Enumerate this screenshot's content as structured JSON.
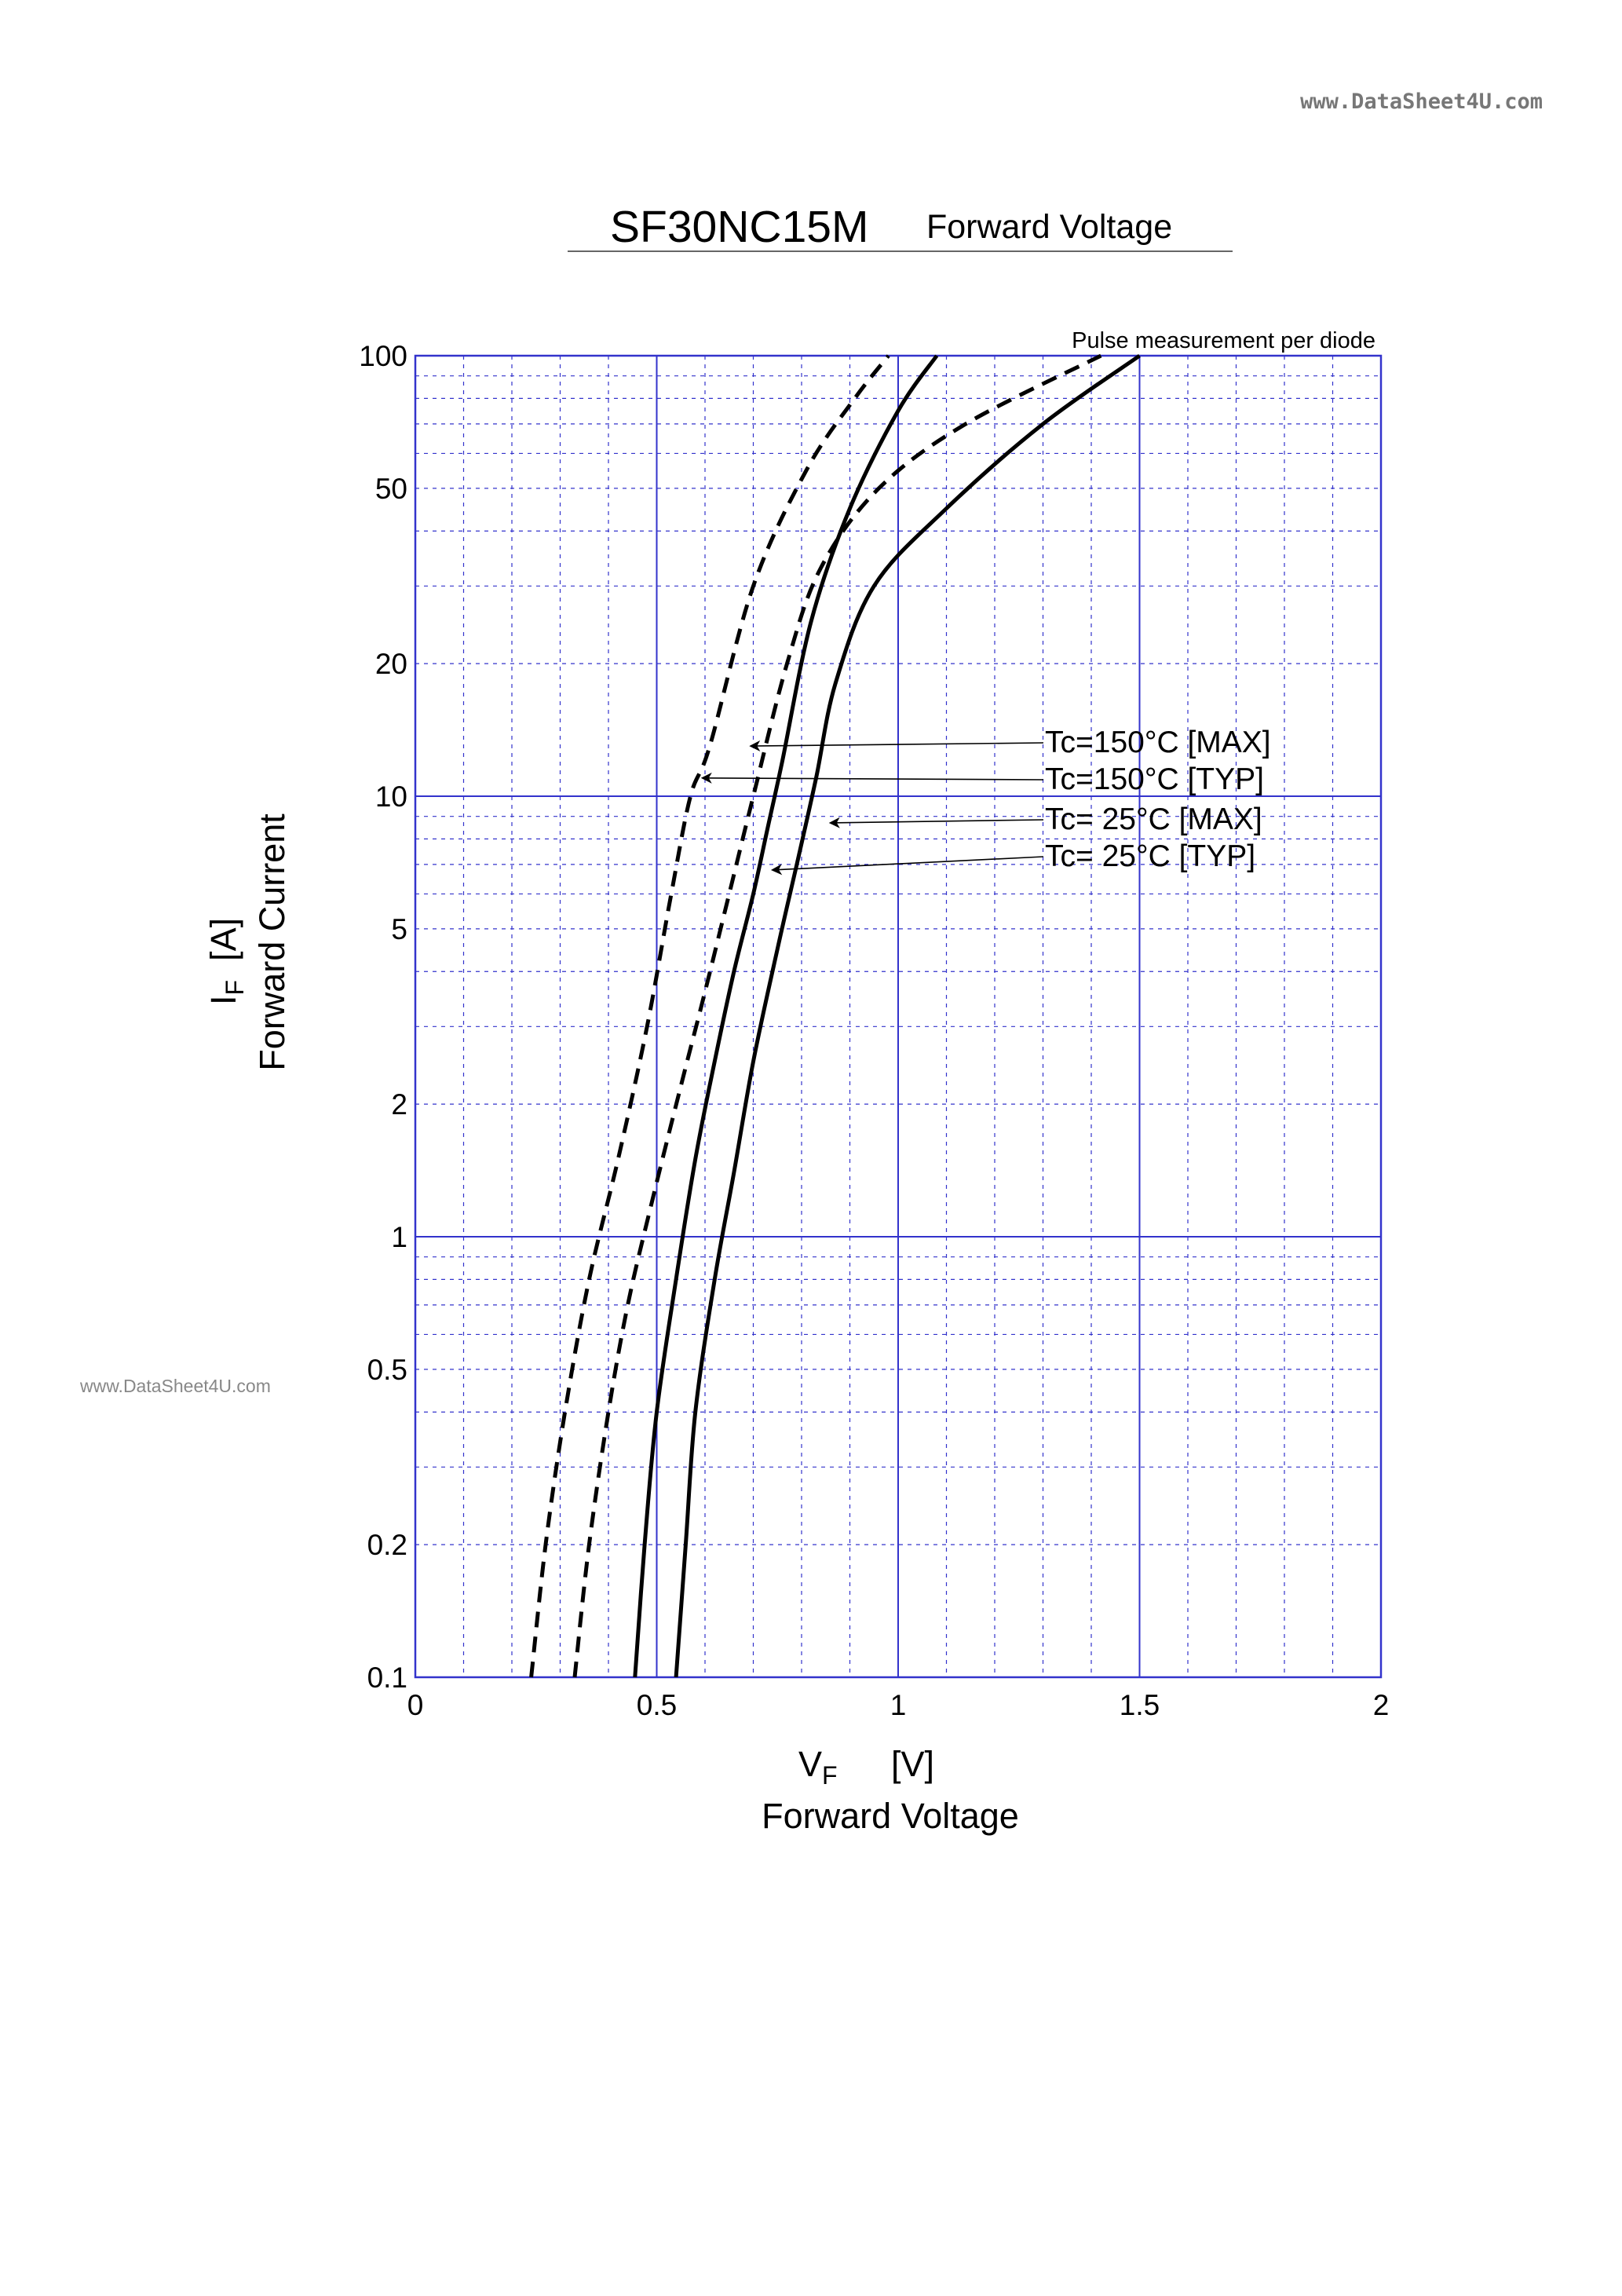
{
  "header": {
    "watermark_top": "www.DataSheet4U.com",
    "watermark_left": "www.DataSheet4U.com",
    "part_number": "SF30NC15M",
    "subtitle": "Forward Voltage"
  },
  "chart_data": {
    "type": "line",
    "title": "SF30NC15M",
    "subtitle": "Forward Voltage",
    "note": "Pulse measurement per diode",
    "x_axis": {
      "symbol": "V",
      "subscript": "F",
      "unit": "[V]",
      "label": "Forward Voltage",
      "range": [
        0,
        2
      ],
      "ticks": [
        0,
        0.5,
        1,
        1.5,
        2
      ],
      "tick_labels": [
        "0",
        "0.5",
        "1",
        "1.5",
        "2"
      ]
    },
    "y_axis": {
      "symbol": "I",
      "subscript": "F",
      "unit": "[A]",
      "label": "Forward Current",
      "scale": "log",
      "range": [
        0.1,
        100
      ],
      "ticks": [
        0.1,
        0.2,
        0.5,
        1,
        2,
        5,
        10,
        20,
        50,
        100
      ],
      "tick_labels": [
        "0.1",
        "0.2",
        "0.5",
        "1",
        "2",
        "5",
        "10",
        "20",
        "50",
        "100"
      ]
    },
    "grid": true,
    "colors": {
      "grid": "#3333cc",
      "curve": "#000000"
    },
    "series": [
      {
        "name": "Tc=150°C [MAX]",
        "style": "dashed",
        "x": [
          0.33,
          0.36,
          0.4,
          0.44,
          0.49,
          0.55,
          0.6,
          0.65,
          0.7,
          0.77,
          0.84,
          0.96,
          1.14,
          1.42
        ],
        "y": [
          0.1,
          0.2,
          0.4,
          0.7,
          1.2,
          2.2,
          3.6,
          6,
          10,
          20,
          33,
          50,
          70,
          100
        ]
      },
      {
        "name": "Tc=150°C [TYP]",
        "style": "dashed",
        "x": [
          0.24,
          0.27,
          0.31,
          0.36,
          0.42,
          0.48,
          0.53,
          0.57,
          0.61,
          0.7,
          0.81,
          0.91,
          0.98
        ],
        "y": [
          0.1,
          0.2,
          0.4,
          0.8,
          1.5,
          3,
          6,
          10,
          13,
          30,
          55,
          80,
          100
        ]
      },
      {
        "name": "Tc= 25°C [MAX]",
        "style": "solid",
        "x": [
          0.54,
          0.56,
          0.58,
          0.62,
          0.66,
          0.7,
          0.75,
          0.79,
          0.83,
          0.87,
          0.95,
          1.1,
          1.3,
          1.5
        ],
        "y": [
          0.1,
          0.2,
          0.4,
          0.8,
          1.4,
          2.5,
          4.5,
          7,
          11,
          18,
          30,
          45,
          70,
          100
        ]
      },
      {
        "name": "Tc= 25°C [TYP]",
        "style": "solid",
        "x": [
          0.455,
          0.475,
          0.5,
          0.54,
          0.58,
          0.62,
          0.66,
          0.7,
          0.73,
          0.76,
          0.82,
          0.9,
          1.0,
          1.08
        ],
        "y": [
          0.1,
          0.2,
          0.4,
          0.8,
          1.5,
          2.5,
          4,
          6,
          8.5,
          12,
          25,
          45,
          75,
          100
        ]
      }
    ],
    "annotations": [
      {
        "series": "Tc=150°C [MAX]",
        "label": "Tc=150°C [MAX]",
        "arrow_x": 0.685,
        "arrow_y": 13
      },
      {
        "series": "Tc=150°C [TYP]",
        "label": "Tc=150°C [TYP]",
        "arrow_x": 0.585,
        "arrow_y": 11
      },
      {
        "series": "Tc= 25°C [MAX]",
        "label": "Tc= 25°C [MAX]",
        "arrow_x": 0.85,
        "arrow_y": 8.7
      },
      {
        "series": "Tc= 25°C [TYP]",
        "label": "Tc= 25°C [TYP]",
        "arrow_x": 0.73,
        "arrow_y": 6.8
      }
    ]
  }
}
